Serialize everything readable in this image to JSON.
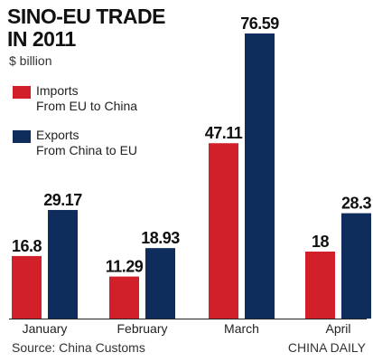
{
  "chart_data": {
    "type": "bar",
    "title_line1": "SINO-EU TRADE",
    "title_line2": "IN 2011",
    "subtitle": "$ billion",
    "categories": [
      "January",
      "February",
      "March",
      "April"
    ],
    "series": [
      {
        "name": "Imports",
        "description": "From EU to China",
        "color": "#d1202a",
        "values": [
          16.8,
          11.29,
          47.11,
          18
        ]
      },
      {
        "name": "Exports",
        "description": "From China to EU",
        "color": "#0f2d5c",
        "values": [
          29.17,
          18.93,
          76.59,
          28.3
        ]
      }
    ],
    "value_labels": [
      [
        "16.8",
        "29.17"
      ],
      [
        "11.29",
        "18.93"
      ],
      [
        "47.11",
        "76.59"
      ],
      [
        "18",
        "28.3"
      ]
    ],
    "ylim": [
      0,
      76.59
    ],
    "grid": false,
    "legend_position": "top-left",
    "source": "Source: China Customs",
    "credit": "CHINA DAILY"
  }
}
